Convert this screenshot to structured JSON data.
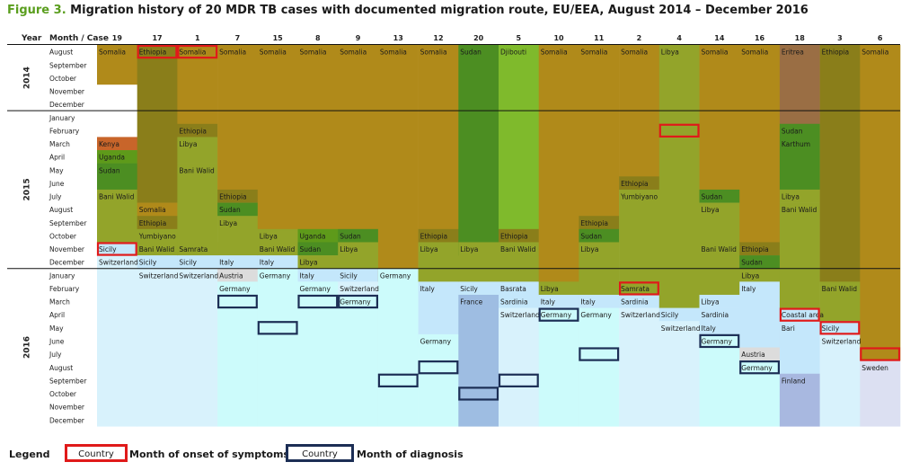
{
  "figure_label": "Figure 3.",
  "figure_title": "Migration history of 20 MDR TB cases with documented migration route, EU/EEA, August 2014 – December 2016",
  "header": {
    "year": "Year",
    "month_case": "Month / Case"
  },
  "legend": {
    "title": "Legend",
    "onset_sample": "Country",
    "onset_label": "Month of onset of symptoms",
    "diagnosis_sample": "Country",
    "diagnosis_label": "Month of diagnosis"
  },
  "colors": {
    "Somalia": "#b08a1a",
    "Ethiopia": "#8a7e1a",
    "Sudan": "#4c8e22",
    "Djibouti": "#7fba2c",
    "Libya": "#93a42a",
    "Eritrea": "#9a6e44",
    "Kenya": "#c8652a",
    "Uganda": "#5e9a1a",
    "Italy": "#c4e7fb",
    "Switzerland": "#d8f2fc",
    "Germany": "#ccfbfb",
    "France": "#9ebde2",
    "Austria": "#dcdcdc",
    "Finland": "#a8b8e0",
    "Sweden": "#dce0f2",
    "onset_border": "#e01a1a",
    "diagnosis_border": "#1c2e55"
  },
  "chart_data": {
    "type": "table",
    "title": "Migration history of 20 MDR TB cases with documented migration route, EU/EEA, August 2014 – December 2016",
    "years": [
      {
        "label": "2014",
        "months": [
          "August",
          "September",
          "October",
          "November",
          "December"
        ]
      },
      {
        "label": "2015",
        "months": [
          "January",
          "February",
          "March",
          "April",
          "May",
          "June",
          "July",
          "August",
          "September",
          "October",
          "November",
          "December"
        ]
      },
      {
        "label": "2016",
        "months": [
          "January",
          "February",
          "March",
          "April",
          "May",
          "June",
          "July",
          "August",
          "September",
          "October",
          "November",
          "December"
        ]
      }
    ],
    "cases": [
      {
        "case": "19",
        "segments": [
          {
            "country": "Somalia",
            "from": 0,
            "to": 2,
            "label": "Somalia"
          },
          {
            "country": "Kenya",
            "from": 7,
            "to": 7,
            "label": "Kenya"
          },
          {
            "country": "Uganda",
            "from": 8,
            "to": 8,
            "label": "Uganda"
          },
          {
            "country": "Sudan",
            "from": 9,
            "to": 10,
            "label": "Sudan"
          },
          {
            "country": "Libya",
            "from": 11,
            "to": 15,
            "label": "Bani Walid"
          },
          {
            "country": "Italy",
            "from": 15,
            "to": 15,
            "label": "Sicily",
            "onset": true
          },
          {
            "country": "Switzerland",
            "from": 16,
            "to": 28,
            "label": "Switzerland"
          }
        ],
        "onset": 15,
        "diagnosis": null
      },
      {
        "case": "17",
        "segments": [
          {
            "country": "Ethiopia",
            "from": 0,
            "to": 11,
            "label": "Ethiopia",
            "onset": true
          },
          {
            "country": "Somalia",
            "from": 12,
            "to": 12,
            "label": "Somalia"
          },
          {
            "country": "Ethiopia",
            "from": 13,
            "to": 13,
            "label": "Ethiopia"
          },
          {
            "country": "Libya",
            "from": 14,
            "to": 14,
            "label": "Yumbiyano"
          },
          {
            "country": "Libya",
            "from": 15,
            "to": 15,
            "label": "Bani Walid"
          },
          {
            "country": "Italy",
            "from": 16,
            "to": 16,
            "label": "Sicily"
          },
          {
            "country": "Switzerland",
            "from": 17,
            "to": 28,
            "label": "Switzerland"
          }
        ],
        "onset": 0,
        "diagnosis": null
      },
      {
        "case": "1",
        "segments": [
          {
            "country": "Somalia",
            "from": 0,
            "to": 5,
            "label": "Somalia",
            "onset": true
          },
          {
            "country": "Ethiopia",
            "from": 6,
            "to": 6,
            "label": "Ethiopia"
          },
          {
            "country": "Libya",
            "from": 7,
            "to": 8,
            "label": "Libya"
          },
          {
            "country": "Libya",
            "from": 9,
            "to": 15,
            "label": "Bani Walid"
          },
          {
            "country": "Libya",
            "from": 15,
            "to": 15,
            "label": "Samrata"
          },
          {
            "country": "Italy",
            "from": 16,
            "to": 16,
            "label": "Sicily"
          },
          {
            "country": "Switzerland",
            "from": 17,
            "to": 28,
            "label": "Switzerland"
          }
        ],
        "onset": 0,
        "diagnosis": null
      },
      {
        "case": "7",
        "segments": [
          {
            "country": "Somalia",
            "from": 0,
            "to": 10,
            "label": "Somalia"
          },
          {
            "country": "Ethiopia",
            "from": 11,
            "to": 11,
            "label": "Ethiopia"
          },
          {
            "country": "Sudan",
            "from": 12,
            "to": 12,
            "label": "Sudan"
          },
          {
            "country": "Libya",
            "from": 13,
            "to": 15,
            "label": "Libya"
          },
          {
            "country": "Italy",
            "from": 16,
            "to": 16,
            "label": "Italy"
          },
          {
            "country": "Austria",
            "from": 17,
            "to": 17,
            "label": "Austria"
          },
          {
            "country": "Germany",
            "from": 18,
            "to": 28,
            "label": "Germany"
          }
        ],
        "onset": null,
        "diagnosis": 19
      },
      {
        "case": "15",
        "segments": [
          {
            "country": "Somalia",
            "from": 0,
            "to": 13,
            "label": "Somalia"
          },
          {
            "country": "Libya",
            "from": 14,
            "to": 14,
            "label": "Libya"
          },
          {
            "country": "Libya",
            "from": 15,
            "to": 15,
            "label": "Bani Walid"
          },
          {
            "country": "Italy",
            "from": 16,
            "to": 16,
            "label": "Italy"
          },
          {
            "country": "Germany",
            "from": 17,
            "to": 28,
            "label": "Germany"
          }
        ],
        "onset": null,
        "diagnosis": 21
      },
      {
        "case": "8",
        "segments": [
          {
            "country": "Somalia",
            "from": 0,
            "to": 13,
            "label": "Somalia"
          },
          {
            "country": "Uganda",
            "from": 14,
            "to": 14,
            "label": "Uganda"
          },
          {
            "country": "Sudan",
            "from": 15,
            "to": 15,
            "label": "Sudan"
          },
          {
            "country": "Libya",
            "from": 16,
            "to": 16,
            "label": "Libya"
          },
          {
            "country": "Italy",
            "from": 17,
            "to": 17,
            "label": "Italy"
          },
          {
            "country": "Germany",
            "from": 18,
            "to": 28,
            "label": "Germany"
          }
        ],
        "onset": null,
        "diagnosis": 19
      },
      {
        "case": "9",
        "segments": [
          {
            "country": "Somalia",
            "from": 0,
            "to": 13,
            "label": "Somalia"
          },
          {
            "country": "Sudan",
            "from": 14,
            "to": 14,
            "label": "Sudan"
          },
          {
            "country": "Libya",
            "from": 15,
            "to": 16,
            "label": "Libya"
          },
          {
            "country": "Italy",
            "from": 17,
            "to": 17,
            "label": "Sicily"
          },
          {
            "country": "Switzerland",
            "from": 18,
            "to": 18,
            "label": "Switzerland"
          },
          {
            "country": "Germany",
            "from": 19,
            "to": 28,
            "label": "Germany"
          }
        ],
        "onset": null,
        "diagnosis": 19
      },
      {
        "case": "13",
        "segments": [
          {
            "country": "Somalia",
            "from": 0,
            "to": 17,
            "label": "Somalia"
          },
          {
            "country": "Germany",
            "from": 17,
            "to": 28,
            "label": "Germany"
          }
        ],
        "onset": null,
        "diagnosis": 25
      },
      {
        "case": "12",
        "segments": [
          {
            "country": "Somalia",
            "from": 0,
            "to": 13,
            "label": "Somalia"
          },
          {
            "country": "Ethiopia",
            "from": 14,
            "to": 14,
            "label": "Ethiopia"
          },
          {
            "country": "Libya",
            "from": 15,
            "to": 17,
            "label": "Libya"
          },
          {
            "country": "Italy",
            "from": 18,
            "to": 22,
            "label": "Italy"
          },
          {
            "country": "Germany",
            "from": 22,
            "to": 28,
            "label": "Germany"
          }
        ],
        "onset": null,
        "diagnosis": 24
      },
      {
        "case": "20",
        "segments": [
          {
            "country": "Sudan",
            "from": 0,
            "to": 15,
            "label": "Sudan"
          },
          {
            "country": "Libya",
            "from": 15,
            "to": 17,
            "label": "Libya"
          },
          {
            "country": "Italy",
            "from": 18,
            "to": 18,
            "label": "Sicily"
          },
          {
            "country": "France",
            "from": 19,
            "to": 28,
            "label": "France"
          }
        ],
        "onset": null,
        "diagnosis": 26
      },
      {
        "case": "5",
        "segments": [
          {
            "country": "Djibouti",
            "from": 0,
            "to": 13,
            "label": "Djibouti"
          },
          {
            "country": "Ethiopia",
            "from": 14,
            "to": 14,
            "label": "Ethiopia"
          },
          {
            "country": "Libya",
            "from": 15,
            "to": 17,
            "label": "Bani Walid"
          },
          {
            "country": "Italy",
            "from": 18,
            "to": 18,
            "label": "Basrata"
          },
          {
            "country": "Italy",
            "from": 19,
            "to": 19,
            "label": "Sardinia"
          },
          {
            "country": "Switzerland",
            "from": 20,
            "to": 28,
            "label": "Switzerland"
          }
        ],
        "onset": null,
        "diagnosis": 25
      },
      {
        "case": "10",
        "segments": [
          {
            "country": "Somalia",
            "from": 0,
            "to": 17,
            "label": "Somalia"
          },
          {
            "country": "Libya",
            "from": 18,
            "to": 18,
            "label": "Libya"
          },
          {
            "country": "Italy",
            "from": 19,
            "to": 19,
            "label": "Italy"
          },
          {
            "country": "Germany",
            "from": 20,
            "to": 28,
            "label": "Germany"
          }
        ],
        "onset": null,
        "diagnosis": 20
      },
      {
        "case": "11",
        "segments": [
          {
            "country": "Somalia",
            "from": 0,
            "to": 12,
            "label": "Somalia"
          },
          {
            "country": "Ethiopia",
            "from": 13,
            "to": 13,
            "label": "Ethiopia"
          },
          {
            "country": "Sudan",
            "from": 14,
            "to": 14,
            "label": "Sudan"
          },
          {
            "country": "Libya",
            "from": 15,
            "to": 18,
            "label": "Libya"
          },
          {
            "country": "Italy",
            "from": 19,
            "to": 19,
            "label": "Italy"
          },
          {
            "country": "Germany",
            "from": 20,
            "to": 28,
            "label": "Germany"
          }
        ],
        "onset": null,
        "diagnosis": 23
      },
      {
        "case": "2",
        "segments": [
          {
            "country": "Somalia",
            "from": 0,
            "to": 9,
            "label": "Somalia"
          },
          {
            "country": "Ethiopia",
            "from": 10,
            "to": 10,
            "label": "Ethiopia"
          },
          {
            "country": "Libya",
            "from": 11,
            "to": 17,
            "label": "Yumbiyano"
          },
          {
            "country": "Libya",
            "from": 18,
            "to": 18,
            "label": "Samrata",
            "onset": true
          },
          {
            "country": "Italy",
            "from": 19,
            "to": 19,
            "label": "Sardinia"
          },
          {
            "country": "Switzerland",
            "from": 20,
            "to": 28,
            "label": "Switzerland"
          }
        ],
        "onset": 18,
        "diagnosis": null
      },
      {
        "case": "4",
        "segments": [
          {
            "country": "Libya",
            "from": 0,
            "to": 19,
            "label": "Libya"
          },
          {
            "country": "Italy",
            "from": 20,
            "to": 20,
            "label": "Sicily"
          },
          {
            "country": "Switzerland",
            "from": 21,
            "to": 28,
            "label": "Switzerland"
          }
        ],
        "onset": 6,
        "diagnosis": null
      },
      {
        "case": "14",
        "segments": [
          {
            "country": "Somalia",
            "from": 0,
            "to": 10,
            "label": "Somalia"
          },
          {
            "country": "Sudan",
            "from": 11,
            "to": 11,
            "label": "Sudan"
          },
          {
            "country": "Libya",
            "from": 12,
            "to": 14,
            "label": "Libya"
          },
          {
            "country": "Libya",
            "from": 15,
            "to": 18,
            "label": "Bani Walid"
          },
          {
            "country": "Italy",
            "from": 19,
            "to": 19,
            "label": "Libya"
          },
          {
            "country": "Italy",
            "from": 20,
            "to": 20,
            "label": "Sardinia"
          },
          {
            "country": "Italy",
            "from": 21,
            "to": 21,
            "label": "Italy"
          },
          {
            "country": "Germany",
            "from": 22,
            "to": 28,
            "label": "Germany"
          }
        ],
        "onset": null,
        "diagnosis": 22
      },
      {
        "case": "16",
        "segments": [
          {
            "country": "Somalia",
            "from": 0,
            "to": 14,
            "label": "Somalia"
          },
          {
            "country": "Ethiopia",
            "from": 15,
            "to": 15,
            "label": "Ethiopia"
          },
          {
            "country": "Sudan",
            "from": 16,
            "to": 16,
            "label": "Sudan"
          },
          {
            "country": "Libya",
            "from": 17,
            "to": 17,
            "label": "Libya"
          },
          {
            "country": "Italy",
            "from": 18,
            "to": 22,
            "label": "Italy"
          },
          {
            "country": "Austria",
            "from": 23,
            "to": 23,
            "label": "Austria"
          },
          {
            "country": "Germany",
            "from": 24,
            "to": 28,
            "label": "Germany"
          }
        ],
        "onset": null,
        "diagnosis": 24
      },
      {
        "case": "18",
        "segments": [
          {
            "country": "Eritrea",
            "from": 0,
            "to": 5,
            "label": "Eritrea"
          },
          {
            "country": "Sudan",
            "from": 6,
            "to": 6,
            "label": "Sudan"
          },
          {
            "country": "Sudan",
            "from": 7,
            "to": 10,
            "label": "Karthum"
          },
          {
            "country": "Libya",
            "from": 11,
            "to": 11,
            "label": "Libya"
          },
          {
            "country": "Libya",
            "from": 12,
            "to": 19,
            "label": "Bani Walid"
          },
          {
            "country": "Italy",
            "from": 20,
            "to": 20,
            "label": "Coastal area",
            "onset": true
          },
          {
            "country": "Italy",
            "from": 21,
            "to": 24,
            "label": "Bari"
          },
          {
            "country": "Finland",
            "from": 25,
            "to": 28,
            "label": "Finland"
          }
        ],
        "onset": 20,
        "diagnosis": null
      },
      {
        "case": "3",
        "segments": [
          {
            "country": "Ethiopia",
            "from": 0,
            "to": 17,
            "label": "Ethiopia"
          },
          {
            "country": "Libya",
            "from": 18,
            "to": 20,
            "label": "Bani Walid"
          },
          {
            "country": "Italy",
            "from": 21,
            "to": 21,
            "label": "Sicily",
            "onset": true
          },
          {
            "country": "Switzerland",
            "from": 22,
            "to": 28,
            "label": "Switzerland"
          }
        ],
        "onset": 21,
        "diagnosis": null
      },
      {
        "case": "6",
        "segments": [
          {
            "country": "Somalia",
            "from": 0,
            "to": 23,
            "label": "Somalia",
            "onset": true
          },
          {
            "country": "Sweden",
            "from": 24,
            "to": 28,
            "label": "Sweden"
          }
        ],
        "onset": 23,
        "diagnosis": null
      }
    ]
  }
}
